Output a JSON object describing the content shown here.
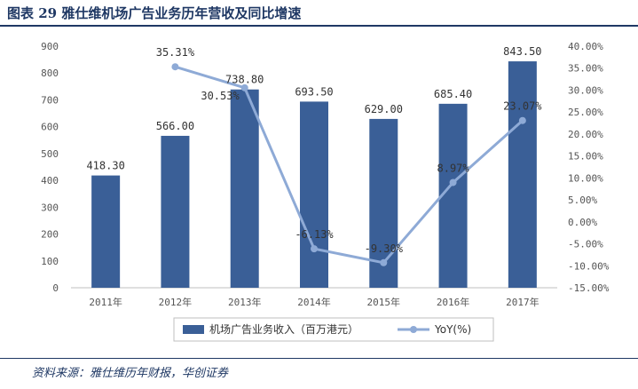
{
  "figure": {
    "title": "图表 29   雅仕维机场广告业务历年营收及同比增速",
    "source": "资料来源：雅仕维历年财报，华创证券"
  },
  "colors": {
    "bar": "#3a5f97",
    "line": "#8eaad6",
    "axis": "#bfbfbf",
    "title": "#1f3864"
  },
  "chart_data": {
    "type": "bar",
    "categories": [
      "2011年",
      "2012年",
      "2013年",
      "2014年",
      "2015年",
      "2016年",
      "2017年"
    ],
    "series": [
      {
        "name": "机场广告业务收入（百万港元）",
        "type": "bar",
        "axis": "left",
        "values": [
          418.3,
          566.0,
          738.8,
          693.5,
          629.0,
          685.4,
          843.5
        ],
        "labels": [
          "418.30",
          "566.00",
          "738.80",
          "693.50",
          "629.00",
          "685.40",
          "843.50"
        ]
      },
      {
        "name": "YoY(%)",
        "type": "line",
        "axis": "right",
        "values": [
          null,
          35.31,
          30.53,
          -6.13,
          -9.3,
          8.97,
          23.07
        ],
        "labels": [
          "",
          "35.31%",
          "30.53%",
          "-6.13%",
          "-9.30%",
          "8.97%",
          "23.07%"
        ]
      }
    ],
    "ylim_left": [
      0,
      900
    ],
    "yticks_left": [
      "0",
      "100",
      "200",
      "300",
      "400",
      "500",
      "600",
      "700",
      "800",
      "900"
    ],
    "ylim_right": [
      -15,
      40
    ],
    "yticks_right": [
      "-15.00%",
      "-10.00%",
      "-5.00%",
      "0.00%",
      "5.00%",
      "10.00%",
      "15.00%",
      "20.00%",
      "25.00%",
      "30.00%",
      "35.00%",
      "40.00%"
    ],
    "legend": {
      "position": "bottom",
      "bar_label": "机场广告业务收入（百万港元）",
      "line_label": "YoY(%)"
    }
  }
}
